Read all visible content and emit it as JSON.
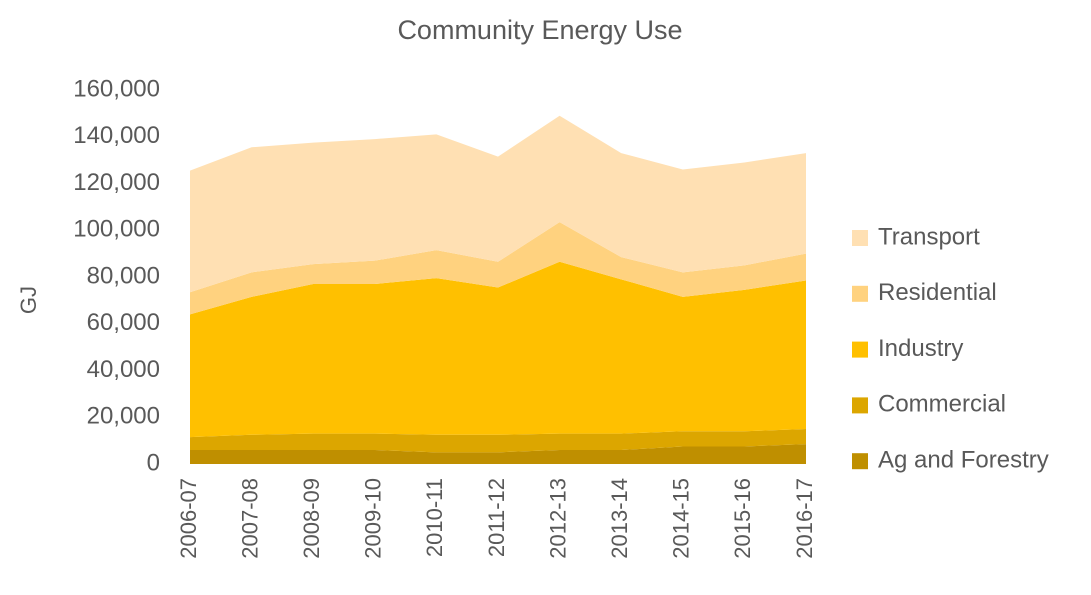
{
  "chart_data": {
    "type": "stacked_area",
    "title": "Community Energy Use",
    "y_label": "GJ",
    "categories": [
      "2006-07",
      "2007-08",
      "2008-09",
      "2009-10",
      "2010-11",
      "2011-12",
      "2012-13",
      "2013-14",
      "2014-15",
      "2015-16",
      "2016-17"
    ],
    "series": [
      {
        "name": "Ag and Forestry",
        "color": "#bf8f00",
        "values": [
          6000,
          6000,
          6000,
          6000,
          5000,
          5000,
          6000,
          6000,
          7500,
          7500,
          8500
        ]
      },
      {
        "name": "Commercial",
        "color": "#dca600",
        "values": [
          5500,
          6500,
          7000,
          7000,
          7500,
          7500,
          7000,
          7000,
          6500,
          6500,
          6500
        ]
      },
      {
        "name": "Industry",
        "color": "#ffc000",
        "values": [
          52500,
          59000,
          64000,
          64000,
          67000,
          63000,
          73500,
          66000,
          57500,
          60500,
          63500
        ]
      },
      {
        "name": "Residential",
        "color": "#ffd27f",
        "values": [
          9500,
          10500,
          8500,
          10000,
          12000,
          11000,
          17000,
          9500,
          10500,
          10500,
          11500
        ]
      },
      {
        "name": "Transport",
        "color": "#ffe0b3",
        "values": [
          52000,
          53500,
          52000,
          52000,
          49500,
          45000,
          45500,
          44500,
          44000,
          44000,
          43000
        ]
      }
    ],
    "ylim": [
      0,
      160000
    ],
    "yticks": [
      0,
      {
        "value": 20000,
        "label": "20,000"
      },
      {
        "value": 40000,
        "label": "40,000"
      },
      {
        "value": 60000,
        "label": "60,000"
      },
      {
        "value": 80000,
        "label": "80,000"
      },
      {
        "value": 100000,
        "label": "100,000"
      },
      {
        "value": 120000,
        "label": "120,000"
      },
      {
        "value": 140000,
        "label": "140,000"
      },
      {
        "value": 160000,
        "label": "160,000"
      }
    ],
    "legend": "right"
  }
}
